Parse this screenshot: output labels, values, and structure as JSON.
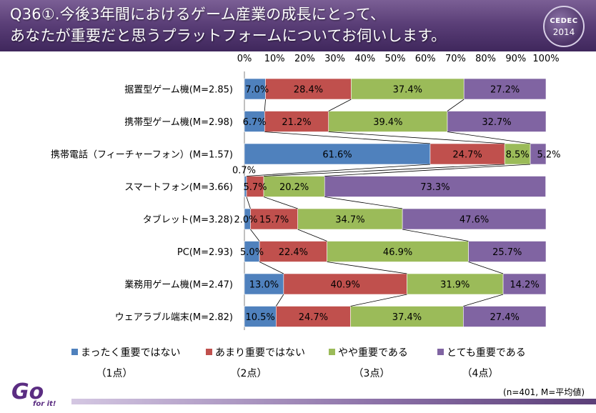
{
  "header": {
    "title_line1": "Q36①.今後3年間におけるゲーム産業の成長にとって、",
    "title_line2": "あなたが重要だと思うプラットフォームについてお伺いします。",
    "logo_line1": "CEDEC",
    "logo_line2": "2014"
  },
  "footer": {
    "note": "(n=401, M=平均値)",
    "logo_text": "Go for it!"
  },
  "chart_data": {
    "type": "bar",
    "orientation": "horizontal",
    "stacked": true,
    "percent_axis": true,
    "xlim": [
      0,
      100
    ],
    "x_ticks": [
      "0%",
      "10%",
      "20%",
      "30%",
      "40%",
      "50%",
      "60%",
      "70%",
      "80%",
      "90%",
      "100%"
    ],
    "categories": [
      "据置型ゲーム機(M=2.85)",
      "携帯型ゲーム機(M=2.98)",
      "携帯電話（フィーチャーフォン）(M=1.57)",
      "スマートフォン(M=3.66)",
      "タブレット(M=3.28)",
      "PC(M=2.93)",
      "業務用ゲーム機(M=2.47)",
      "ウェアラブル端末(M=2.82)"
    ],
    "series": [
      {
        "name": "まったく重要ではない",
        "sublabel": "（1点）",
        "color": "#4f81bd",
        "values": [
          7.0,
          6.7,
          61.6,
          0.7,
          2.0,
          5.0,
          13.0,
          10.5
        ]
      },
      {
        "name": "あまり重要ではない",
        "sublabel": "（2点）",
        "color": "#c0504d",
        "values": [
          28.4,
          21.2,
          24.7,
          5.7,
          15.7,
          22.4,
          40.9,
          24.7
        ]
      },
      {
        "name": "やや重要である",
        "sublabel": "（3点）",
        "color": "#9bbb59",
        "values": [
          37.4,
          39.4,
          8.5,
          20.2,
          34.7,
          46.9,
          31.9,
          37.4
        ]
      },
      {
        "name": "とても重要である",
        "sublabel": "（4点）",
        "color": "#8064a2",
        "values": [
          27.2,
          32.7,
          5.2,
          73.3,
          47.6,
          25.7,
          14.2,
          27.4
        ]
      }
    ],
    "data_labels": [
      [
        "7.0%",
        "28.4%",
        "37.4%",
        "27.2%"
      ],
      [
        "6.7%",
        "21.2%",
        "39.4%",
        "32.7%"
      ],
      [
        "61.6%",
        "24.7%",
        "8.5%",
        "5.2%"
      ],
      [
        "0.7%",
        "5.7%",
        "20.2%",
        "73.3%"
      ],
      [
        "2.0%",
        "15.7%",
        "34.7%",
        "47.6%"
      ],
      [
        "5.0%",
        "22.4%",
        "46.9%",
        "25.7%"
      ],
      [
        "13.0%",
        "40.9%",
        "31.9%",
        "14.2%"
      ],
      [
        "10.5%",
        "24.7%",
        "37.4%",
        "27.4%"
      ]
    ],
    "series_lines": true,
    "legend_position": "bottom"
  }
}
